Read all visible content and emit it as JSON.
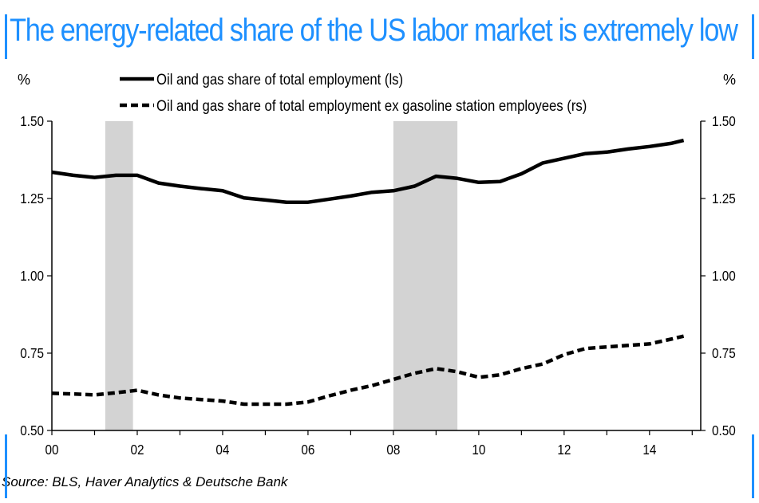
{
  "title": "The energy-related share of the US labor market is extremely low",
  "source": "Source: BLS, Haver Analytics & Deutsche Bank",
  "colors": {
    "title": "#1e90ff",
    "line": "#000000",
    "recession": "#d3d3d3"
  },
  "chart_data": {
    "type": "line",
    "title": "The energy-related share of the US labor market is extremely low",
    "left_axis_unit": "%",
    "right_axis_unit": "%",
    "x_ticks": [
      "00",
      "02",
      "04",
      "06",
      "08",
      "10",
      "12",
      "14"
    ],
    "x_tick_values": [
      2000,
      2002,
      2004,
      2006,
      2008,
      2010,
      2012,
      2014
    ],
    "xlim": [
      2000,
      2015.2
    ],
    "ylim_left": [
      0.5,
      1.5
    ],
    "ylim_right": [
      0.5,
      1.5
    ],
    "y_ticks_left": [
      "0.50",
      "0.75",
      "1.00",
      "1.25",
      "1.50"
    ],
    "y_ticks_right": [
      "0.50",
      "0.75",
      "1.00",
      "1.25",
      "1.50"
    ],
    "recessions": [
      [
        2001.25,
        2001.9
      ],
      [
        2008.0,
        2009.5
      ]
    ],
    "legend_position": "top-center",
    "series": [
      {
        "name": "Oil and gas share of total employment (ls)",
        "style": "solid",
        "axis": "left",
        "x": [
          2000.0,
          2000.5,
          2001.0,
          2001.5,
          2002.0,
          2002.5,
          2003.0,
          2003.5,
          2004.0,
          2004.5,
          2005.0,
          2005.5,
          2006.0,
          2006.5,
          2007.0,
          2007.5,
          2008.0,
          2008.5,
          2009.0,
          2009.5,
          2010.0,
          2010.5,
          2011.0,
          2011.5,
          2012.0,
          2012.5,
          2013.0,
          2013.5,
          2014.0,
          2014.5,
          2014.8
        ],
        "values": [
          1.335,
          1.325,
          1.318,
          1.325,
          1.325,
          1.3,
          1.29,
          1.282,
          1.275,
          1.252,
          1.245,
          1.238,
          1.238,
          1.248,
          1.258,
          1.27,
          1.275,
          1.29,
          1.322,
          1.315,
          1.302,
          1.305,
          1.33,
          1.365,
          1.38,
          1.395,
          1.4,
          1.41,
          1.418,
          1.428,
          1.438
        ]
      },
      {
        "name": "Oil and gas share of total employment ex gasoline station employees (rs)",
        "style": "dashed",
        "axis": "right",
        "x": [
          2000.0,
          2000.5,
          2001.0,
          2001.5,
          2002.0,
          2002.5,
          2003.0,
          2003.5,
          2004.0,
          2004.5,
          2005.0,
          2005.5,
          2006.0,
          2006.5,
          2007.0,
          2007.5,
          2008.0,
          2008.5,
          2009.0,
          2009.5,
          2010.0,
          2010.5,
          2011.0,
          2011.5,
          2012.0,
          2012.5,
          2013.0,
          2013.5,
          2014.0,
          2014.5,
          2014.8
        ],
        "values": [
          0.62,
          0.618,
          0.615,
          0.622,
          0.63,
          0.615,
          0.605,
          0.6,
          0.595,
          0.585,
          0.585,
          0.585,
          0.592,
          0.612,
          0.63,
          0.645,
          0.665,
          0.685,
          0.7,
          0.69,
          0.672,
          0.68,
          0.7,
          0.715,
          0.745,
          0.765,
          0.77,
          0.775,
          0.78,
          0.795,
          0.805
        ]
      }
    ]
  }
}
